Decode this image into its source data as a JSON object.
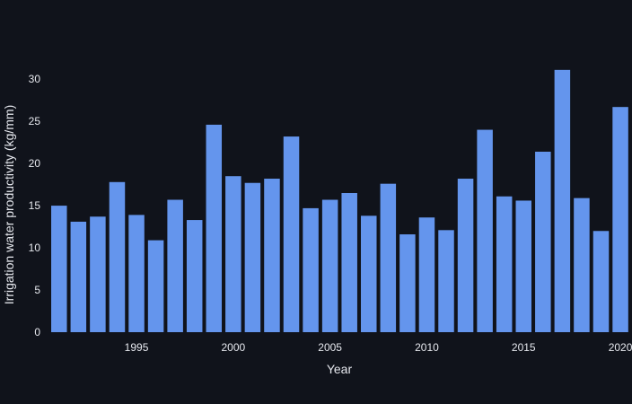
{
  "colors": {
    "background": "#10131b",
    "bar": "#6495ed",
    "text": "#e6e8ee"
  },
  "chart_data": {
    "type": "bar",
    "title": "",
    "xlabel": "Year",
    "ylabel": "Irrigation water productivity (kg/mm)",
    "x_tick_labels": [
      "1995",
      "2000",
      "2005",
      "2010",
      "2015",
      "2020"
    ],
    "y_tick_labels": [
      "0",
      "5",
      "10",
      "15",
      "20",
      "25",
      "30"
    ],
    "ylim": [
      0,
      33
    ],
    "xlim": [
      1990.5,
      2020.6
    ],
    "grid": false,
    "categories": [
      1991,
      1992,
      1993,
      1994,
      1995,
      1996,
      1997,
      1998,
      1999,
      2000,
      2001,
      2002,
      2003,
      2004,
      2005,
      2006,
      2007,
      2008,
      2009,
      2010,
      2011,
      2012,
      2013,
      2014,
      2015,
      2016,
      2017,
      2018,
      2019,
      2020
    ],
    "values": [
      15.0,
      13.1,
      13.7,
      17.8,
      13.9,
      10.9,
      15.7,
      13.3,
      24.6,
      18.5,
      17.7,
      18.2,
      23.2,
      14.7,
      15.7,
      16.5,
      13.8,
      17.6,
      11.6,
      13.6,
      12.1,
      18.2,
      24.0,
      16.1,
      15.6,
      21.4,
      31.1,
      15.9,
      12.0,
      26.7
    ]
  }
}
